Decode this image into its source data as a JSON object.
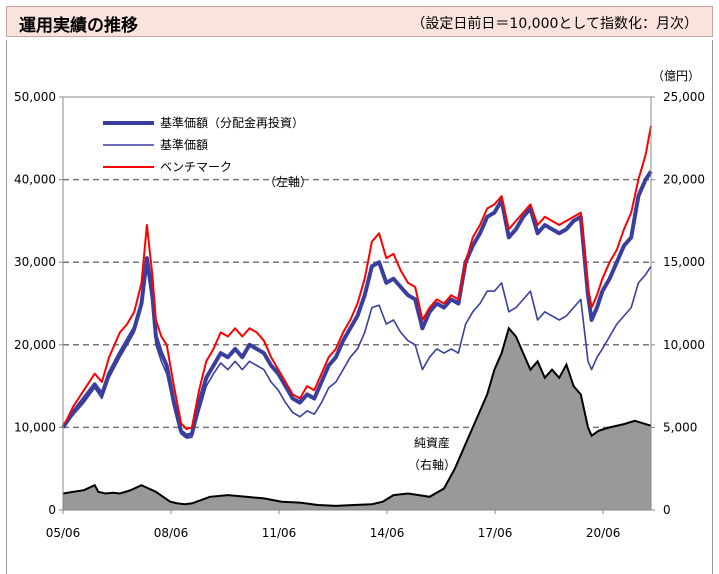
{
  "header": {
    "title": "運用実績の推移",
    "subtitle": "（設定日前日＝10,000として指数化：月次）"
  },
  "colors": {
    "header_bg": "#fbe3dd",
    "nav_reinvested": "#3a3f9e",
    "nav": "#3a3f9e",
    "benchmark": "#ff0000",
    "net_assets": "#999999"
  },
  "chart_data": {
    "type": "line",
    "title": "",
    "unit_right": "（億円）",
    "left_axis_note": "（左軸）",
    "area_label": [
      "純資産",
      "（右軸）"
    ],
    "x_ticks": [
      "05/06",
      "08/06",
      "11/06",
      "14/06",
      "17/06",
      "20/06"
    ],
    "x_range": [
      2005.42,
      2021.75
    ],
    "x_tick_values": [
      2005.42,
      2008.42,
      2011.42,
      2014.42,
      2017.42,
      2020.42
    ],
    "y_left": {
      "min": 0,
      "max": 50000,
      "ticks": [
        "0",
        "10,000",
        "20,000",
        "30,000",
        "40,000",
        "50,000"
      ],
      "tick_values": [
        0,
        10000,
        20000,
        30000,
        40000,
        50000
      ]
    },
    "y_right": {
      "min": 0,
      "max": 25000,
      "ticks": [
        "0",
        "5,000",
        "10,000",
        "15,000",
        "20,000",
        "25,000"
      ],
      "tick_values": [
        0,
        5000,
        10000,
        15000,
        20000,
        25000
      ]
    },
    "gridlines": "dashed at each left tick",
    "legend_position": "top-left",
    "series": [
      {
        "name": "基準価額（分配金再投資）",
        "axis": "left",
        "x": [
          2005.42,
          2005.7,
          2006.0,
          2006.3,
          2006.5,
          2006.7,
          2007.0,
          2007.2,
          2007.4,
          2007.6,
          2007.75,
          2007.9,
          2008.0,
          2008.15,
          2008.3,
          2008.5,
          2008.7,
          2008.85,
          2009.0,
          2009.2,
          2009.4,
          2009.6,
          2009.8,
          2010.0,
          2010.2,
          2010.4,
          2010.6,
          2010.8,
          2011.0,
          2011.2,
          2011.4,
          2011.6,
          2011.8,
          2012.0,
          2012.2,
          2012.4,
          2012.6,
          2012.8,
          2013.0,
          2013.2,
          2013.4,
          2013.6,
          2013.8,
          2014.0,
          2014.2,
          2014.4,
          2014.6,
          2014.8,
          2015.0,
          2015.2,
          2015.4,
          2015.6,
          2015.8,
          2016.0,
          2016.2,
          2016.4,
          2016.6,
          2016.8,
          2017.0,
          2017.2,
          2017.4,
          2017.6,
          2017.8,
          2018.0,
          2018.2,
          2018.4,
          2018.6,
          2018.8,
          2019.0,
          2019.2,
          2019.4,
          2019.6,
          2019.8,
          2020.0,
          2020.1,
          2020.25,
          2020.4,
          2020.6,
          2020.8,
          2021.0,
          2021.2,
          2021.4,
          2021.6,
          2021.75
        ],
        "y": [
          10000,
          11800,
          13500,
          15200,
          14000,
          16500,
          19000,
          20500,
          22000,
          25000,
          30500,
          26000,
          21000,
          19000,
          17500,
          13000,
          9500,
          9000,
          9200,
          13000,
          16000,
          17500,
          19000,
          18500,
          19500,
          18500,
          20000,
          19500,
          19000,
          17500,
          16500,
          15000,
          13500,
          13000,
          14000,
          13500,
          15500,
          17500,
          18500,
          20500,
          22000,
          23500,
          26000,
          29500,
          30000,
          27500,
          28000,
          27000,
          26000,
          25500,
          22000,
          24000,
          25000,
          24500,
          25500,
          25000,
          30000,
          32000,
          33500,
          35500,
          36000,
          37500,
          33000,
          34000,
          35500,
          36500,
          33500,
          34500,
          34000,
          33500,
          34000,
          35000,
          35500,
          26000,
          23000,
          24500,
          26500,
          28000,
          30000,
          32000,
          33000,
          38000,
          40000,
          41000
        ]
      },
      {
        "name": "基準価額",
        "axis": "left",
        "x": [
          2005.42,
          2005.7,
          2006.0,
          2006.3,
          2006.5,
          2006.7,
          2007.0,
          2007.2,
          2007.4,
          2007.6,
          2007.75,
          2007.9,
          2008.0,
          2008.15,
          2008.3,
          2008.5,
          2008.7,
          2008.85,
          2009.0,
          2009.2,
          2009.4,
          2009.6,
          2009.8,
          2010.0,
          2010.2,
          2010.4,
          2010.6,
          2010.8,
          2011.0,
          2011.2,
          2011.4,
          2011.6,
          2011.8,
          2012.0,
          2012.2,
          2012.4,
          2012.6,
          2012.8,
          2013.0,
          2013.2,
          2013.4,
          2013.6,
          2013.8,
          2014.0,
          2014.2,
          2014.4,
          2014.6,
          2014.8,
          2015.0,
          2015.2,
          2015.4,
          2015.6,
          2015.8,
          2016.0,
          2016.2,
          2016.4,
          2016.6,
          2016.8,
          2017.0,
          2017.2,
          2017.4,
          2017.6,
          2017.8,
          2018.0,
          2018.2,
          2018.4,
          2018.6,
          2018.8,
          2019.0,
          2019.2,
          2019.4,
          2019.6,
          2019.8,
          2020.0,
          2020.1,
          2020.25,
          2020.4,
          2020.6,
          2020.8,
          2021.0,
          2021.2,
          2021.4,
          2021.6,
          2021.75
        ],
        "y": [
          10000,
          11500,
          13000,
          14800,
          13500,
          16000,
          18500,
          20000,
          21500,
          24500,
          29500,
          25000,
          20000,
          18000,
          16500,
          12500,
          9200,
          8700,
          8800,
          12000,
          15000,
          16500,
          17800,
          17000,
          18000,
          17000,
          18000,
          17500,
          17000,
          15500,
          14500,
          13000,
          11800,
          11300,
          12000,
          11600,
          13000,
          14800,
          15500,
          17000,
          18500,
          19500,
          21500,
          24500,
          24800,
          22500,
          23000,
          21500,
          20500,
          20000,
          17000,
          18500,
          19500,
          19000,
          19500,
          19000,
          22500,
          24000,
          25000,
          26500,
          26500,
          27500,
          24000,
          24500,
          25500,
          26500,
          23000,
          24000,
          23500,
          23000,
          23500,
          24500,
          25500,
          18000,
          17000,
          18500,
          19500,
          21000,
          22500,
          23500,
          24500,
          27500,
          28500,
          29500
        ]
      },
      {
        "name": "ベンチマーク",
        "axis": "left",
        "x": [
          2005.42,
          2005.7,
          2006.0,
          2006.3,
          2006.5,
          2006.7,
          2007.0,
          2007.2,
          2007.4,
          2007.6,
          2007.75,
          2007.9,
          2008.0,
          2008.15,
          2008.3,
          2008.5,
          2008.7,
          2008.85,
          2009.0,
          2009.2,
          2009.4,
          2009.6,
          2009.8,
          2010.0,
          2010.2,
          2010.4,
          2010.6,
          2010.8,
          2011.0,
          2011.2,
          2011.4,
          2011.6,
          2011.8,
          2012.0,
          2012.2,
          2012.4,
          2012.6,
          2012.8,
          2013.0,
          2013.2,
          2013.4,
          2013.6,
          2013.8,
          2014.0,
          2014.2,
          2014.4,
          2014.6,
          2014.8,
          2015.0,
          2015.2,
          2015.4,
          2015.6,
          2015.8,
          2016.0,
          2016.2,
          2016.4,
          2016.6,
          2016.8,
          2017.0,
          2017.2,
          2017.4,
          2017.6,
          2017.8,
          2018.0,
          2018.2,
          2018.4,
          2018.6,
          2018.8,
          2019.0,
          2019.2,
          2019.4,
          2019.6,
          2019.8,
          2020.0,
          2020.1,
          2020.25,
          2020.4,
          2020.6,
          2020.8,
          2021.0,
          2021.2,
          2021.4,
          2021.6,
          2021.75
        ],
        "y": [
          10000,
          12500,
          14500,
          16500,
          15500,
          18500,
          21500,
          22500,
          24000,
          27500,
          34500,
          28500,
          23000,
          21000,
          20000,
          15000,
          10500,
          9800,
          10000,
          14500,
          18000,
          19500,
          21500,
          21000,
          22000,
          21000,
          22000,
          21500,
          20500,
          18500,
          17000,
          15500,
          14000,
          13500,
          15000,
          14500,
          16500,
          18500,
          19500,
          21500,
          23000,
          25000,
          28000,
          32500,
          33500,
          30500,
          31000,
          29000,
          27500,
          27000,
          23000,
          24500,
          25500,
          25000,
          26000,
          25500,
          30000,
          33000,
          34500,
          36500,
          37000,
          38000,
          34000,
          35000,
          36000,
          37000,
          34500,
          35500,
          35000,
          34500,
          35000,
          35500,
          36000,
          27000,
          24500,
          26000,
          28000,
          30000,
          31500,
          34000,
          36000,
          40000,
          43000,
          46500
        ]
      },
      {
        "name": "純資産",
        "axis": "right",
        "type": "area",
        "x": [
          2005.42,
          2005.7,
          2006.0,
          2006.3,
          2006.4,
          2006.6,
          2006.8,
          2007.0,
          2007.3,
          2007.6,
          2007.8,
          2008.0,
          2008.2,
          2008.4,
          2008.6,
          2008.8,
          2009.0,
          2009.5,
          2010.0,
          2010.5,
          2011.0,
          2011.5,
          2012.0,
          2012.5,
          2013.0,
          2013.5,
          2014.0,
          2014.3,
          2014.6,
          2015.0,
          2015.3,
          2015.6,
          2016.0,
          2016.3,
          2016.6,
          2016.9,
          2017.2,
          2017.4,
          2017.6,
          2017.8,
          2018.0,
          2018.2,
          2018.4,
          2018.6,
          2018.8,
          2019.0,
          2019.2,
          2019.4,
          2019.6,
          2019.8,
          2020.0,
          2020.1,
          2020.3,
          2020.6,
          2021.0,
          2021.3,
          2021.6,
          2021.75
        ],
        "y": [
          1000,
          1100,
          1200,
          1500,
          1100,
          1000,
          1050,
          1000,
          1200,
          1500,
          1300,
          1100,
          800,
          500,
          400,
          350,
          400,
          800,
          900,
          800,
          700,
          500,
          450,
          300,
          250,
          300,
          350,
          500,
          900,
          1000,
          900,
          800,
          1300,
          2500,
          4000,
          5500,
          7000,
          8500,
          9500,
          11000,
          10500,
          9500,
          8500,
          9000,
          8000,
          8500,
          8000,
          8800,
          7500,
          7000,
          5000,
          4500,
          4800,
          5000,
          5200,
          5400,
          5200,
          5100
        ]
      }
    ]
  }
}
